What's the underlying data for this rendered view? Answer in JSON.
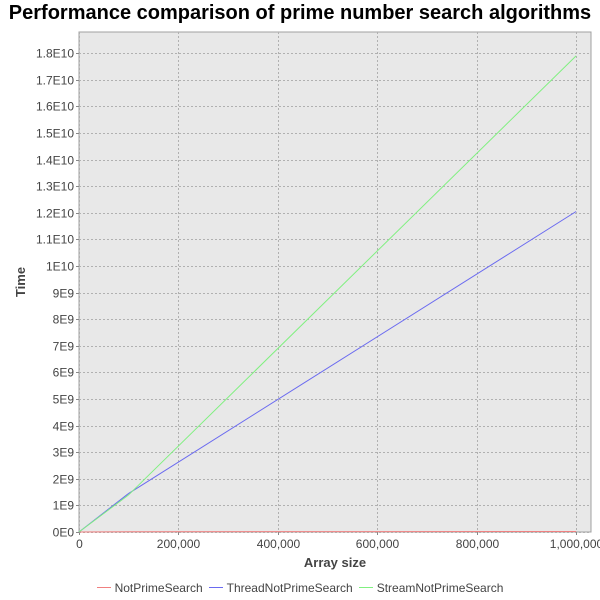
{
  "chart_data": {
    "type": "line",
    "title": "Performance comparison of prime number search algorithms",
    "xlabel": "Array size",
    "ylabel": "Time",
    "xlim": [
      0,
      1030000
    ],
    "ylim": [
      0,
      18800000000
    ],
    "x_ticks": [
      {
        "value": 0,
        "label": "0"
      },
      {
        "value": 200000,
        "label": "200,000"
      },
      {
        "value": 400000,
        "label": "400,000"
      },
      {
        "value": 600000,
        "label": "600,000"
      },
      {
        "value": 800000,
        "label": "800,000"
      },
      {
        "value": 1000000,
        "label": "1,000,000"
      }
    ],
    "y_ticks": [
      {
        "value": 0,
        "label": "0E0"
      },
      {
        "value": 1000000000,
        "label": "1E9"
      },
      {
        "value": 2000000000,
        "label": "2E9"
      },
      {
        "value": 3000000000,
        "label": "3E9"
      },
      {
        "value": 4000000000,
        "label": "4E9"
      },
      {
        "value": 5000000000,
        "label": "5E9"
      },
      {
        "value": 6000000000,
        "label": "6E9"
      },
      {
        "value": 7000000000,
        "label": "7E9"
      },
      {
        "value": 8000000000,
        "label": "8E9"
      },
      {
        "value": 9000000000,
        "label": "9E9"
      },
      {
        "value": 10000000000,
        "label": "1E10"
      },
      {
        "value": 11000000000,
        "label": "1.1E10"
      },
      {
        "value": 12000000000,
        "label": "1.2E10"
      },
      {
        "value": 13000000000,
        "label": "1.3E10"
      },
      {
        "value": 14000000000,
        "label": "1.4E10"
      },
      {
        "value": 15000000000,
        "label": "1.5E10"
      },
      {
        "value": 16000000000,
        "label": "1.6E10"
      },
      {
        "value": 17000000000,
        "label": "1.7E10"
      },
      {
        "value": 18000000000,
        "label": "1.8E10"
      }
    ],
    "grid": true,
    "legend_position": "bottom",
    "background_color": "#e8e8e8",
    "grid_color": "#b0b0b0",
    "series": [
      {
        "name": "NotPrimeSearch",
        "color": "#f08080",
        "points": [
          [
            0,
            0
          ],
          [
            100000,
            10000000
          ],
          [
            1000000,
            20000000
          ]
        ]
      },
      {
        "name": "ThreadNotPrimeSearch",
        "color": "#6a6af0",
        "points": [
          [
            0,
            0
          ],
          [
            100000,
            1450000000
          ],
          [
            1000000,
            12050000000
          ]
        ]
      },
      {
        "name": "StreamNotPrimeSearch",
        "color": "#80f080",
        "points": [
          [
            0,
            0
          ],
          [
            100000,
            1400000000
          ],
          [
            1000000,
            17900000000
          ]
        ]
      }
    ]
  }
}
